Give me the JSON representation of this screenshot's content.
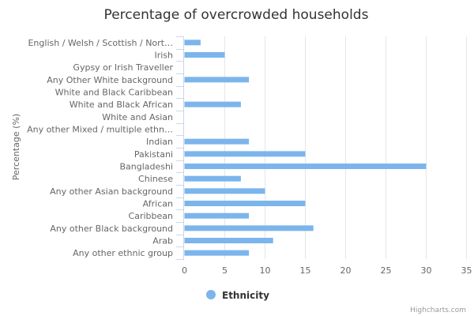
{
  "chart_data": {
    "type": "bar",
    "orientation": "horizontal",
    "title": "Percentage of overcrowded households",
    "ylabel": "Percentage (%)",
    "xlim": [
      0,
      35
    ],
    "ticks": [
      0,
      5,
      10,
      15,
      20,
      25,
      30,
      35
    ],
    "grid": true,
    "legend_position": "bottom-center",
    "categories": [
      "English / Welsh / Scottish / Nort…",
      "Irish",
      "Gypsy or Irish Traveller",
      "Any Other White background",
      "White and Black Caribbean",
      "White and Black African",
      "White and Asian",
      "Any other Mixed / multiple ethn…",
      "Indian",
      "Pakistani",
      "Bangladeshi",
      "Chinese",
      "Any other Asian background",
      "African",
      "Caribbean",
      "Any other Black background",
      "Arab",
      "Any other ethnic group"
    ],
    "series": [
      {
        "name": "Ethnicity",
        "color": "#7cb5ec",
        "values": [
          2,
          5,
          null,
          8,
          null,
          7,
          null,
          null,
          8,
          15,
          30,
          7,
          10,
          15,
          8,
          16,
          11,
          8
        ]
      }
    ]
  },
  "credits": "Highcharts.com"
}
